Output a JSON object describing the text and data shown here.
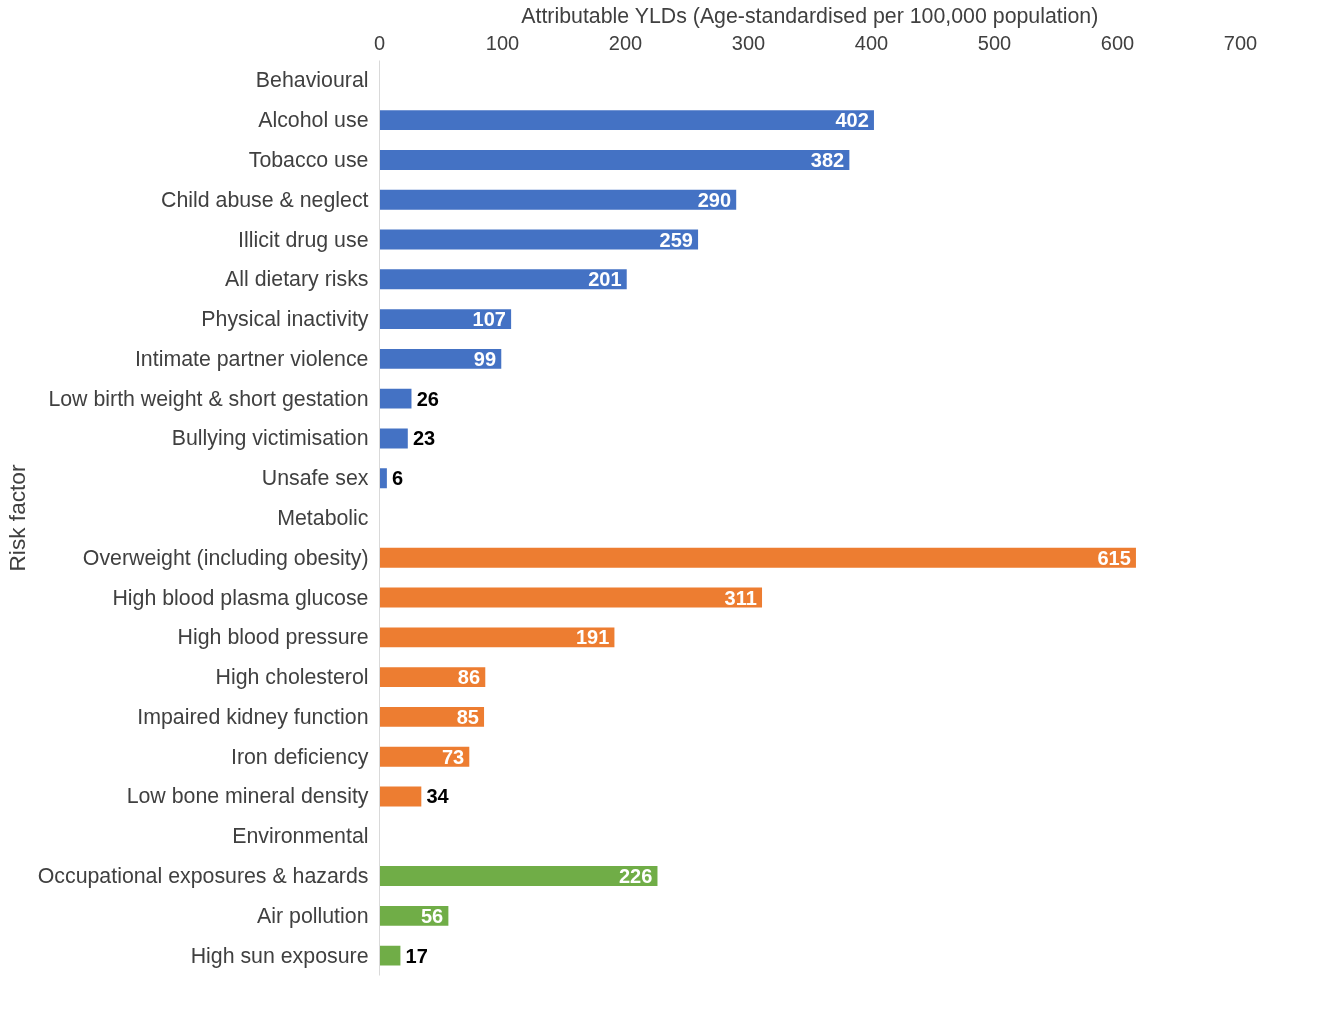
{
  "chart_data": {
    "type": "bar",
    "orientation": "horizontal",
    "xlabel": "Attributable YLDs (Age-standardised per 100,000 population)",
    "ylabel": "Risk factor",
    "categories": [
      "Behavioural",
      "Alcohol use",
      "Tobacco use",
      "Child abuse & neglect",
      "Illicit drug use",
      "All dietary risks",
      "Physical inactivity",
      "Intimate partner violence",
      "Low birth weight & short gestation",
      "Bullying victimisation",
      "Unsafe sex",
      "Metabolic",
      "Overweight (including obesity)",
      "High blood plasma glucose",
      "High blood pressure",
      "High cholesterol",
      "Impaired kidney function",
      "Iron deficiency",
      "Low bone mineral density",
      "Environmental",
      "Occupational exposures & hazards",
      "Air pollution",
      "High sun exposure"
    ],
    "values": [
      null,
      402,
      382,
      290,
      259,
      201,
      107,
      99,
      26,
      23,
      6,
      null,
      615,
      311,
      191,
      86,
      85,
      73,
      34,
      null,
      226,
      56,
      17
    ],
    "colors": [
      null,
      "#4472c4",
      "#4472c4",
      "#4472c4",
      "#4472c4",
      "#4472c4",
      "#4472c4",
      "#4472c4",
      "#4472c4",
      "#4472c4",
      "#4472c4",
      null,
      "#ed7d31",
      "#ed7d31",
      "#ed7d31",
      "#ed7d31",
      "#ed7d31",
      "#ed7d31",
      "#ed7d31",
      null,
      "#70ad47",
      "#70ad47",
      "#70ad47"
    ],
    "xlim": [
      0,
      700
    ],
    "xticks": [
      0,
      100,
      200,
      300,
      400,
      500,
      600,
      700
    ],
    "data_labels": true,
    "grid": false
  }
}
